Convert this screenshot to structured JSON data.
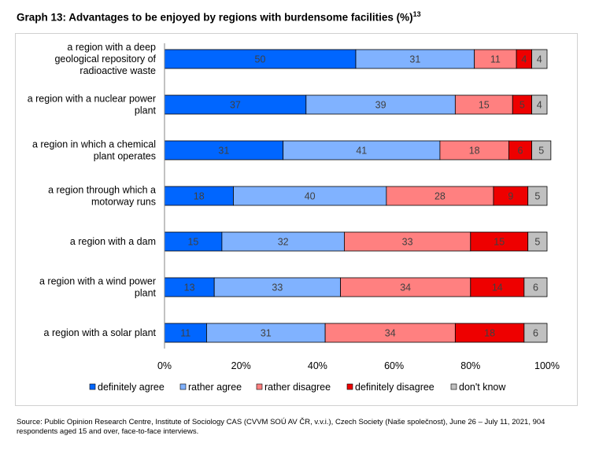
{
  "title": "Graph 13: Advantages to be enjoyed by regions with burdensome facilities (%)",
  "title_sup": "13",
  "source": "Source: Public Opinion Research Centre, Institute of Sociology CAS (CVVM SOÚ AV ČR, v.v.i.), Czech Society (Naše společnost), June 26 – July 11, 2021, 904 respondents aged 15 and over, face-to-face interviews.",
  "chart_data": {
    "type": "bar",
    "orientation": "horizontal",
    "stacked": true,
    "categories": [
      "a region with a deep geological repository of radioactive waste",
      "a region with a nuclear power plant",
      "a region in which a chemical plant operates",
      "a region through which a motorway runs",
      "a region with a dam",
      "a region with a wind power plant",
      "a region with a solar plant"
    ],
    "series": [
      {
        "name": "definitely agree",
        "color": "#0066ff",
        "values": [
          50,
          37,
          31,
          18,
          15,
          13,
          11
        ]
      },
      {
        "name": "rather agree",
        "color": "#80b2ff",
        "values": [
          31,
          39,
          41,
          40,
          32,
          33,
          31
        ]
      },
      {
        "name": "rather disagree",
        "color": "#ff8080",
        "values": [
          11,
          15,
          18,
          28,
          33,
          34,
          34
        ]
      },
      {
        "name": "definitely disagree",
        "color": "#ee0000",
        "values": [
          4,
          5,
          6,
          9,
          15,
          14,
          18
        ]
      },
      {
        "name": "don't know",
        "color": "#c0c0c0",
        "values": [
          4,
          4,
          5,
          5,
          5,
          6,
          6
        ]
      }
    ],
    "xlim": [
      0,
      100
    ],
    "x_ticks": [
      "0%",
      "20%",
      "40%",
      "60%",
      "80%",
      "100%"
    ],
    "legend_position": "bottom",
    "grid": false
  }
}
